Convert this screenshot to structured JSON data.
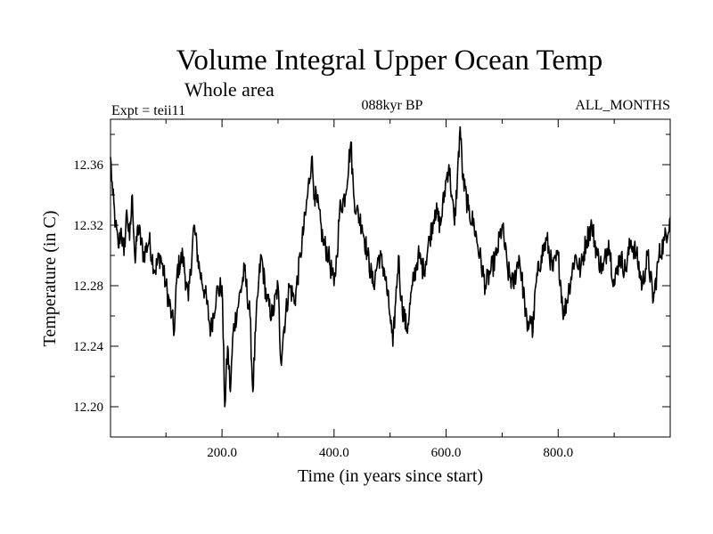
{
  "chart_data": {
    "type": "line",
    "title": "Volume Integral Upper Ocean Temp",
    "subtitle": "Whole area",
    "experiment": "Expt = teii11",
    "period": "088kyr BP",
    "months": "ALL_MONTHS",
    "xlabel": "Time (in years since start)",
    "ylabel": "Temperature (in C)",
    "xlim": [
      1,
      1000
    ],
    "ylim": [
      12.18,
      12.39
    ],
    "x_ticks": [
      200,
      400,
      600,
      800
    ],
    "x_tick_labels": [
      "200.0",
      "400.0",
      "600.0",
      "800.0"
    ],
    "y_ticks": [
      12.2,
      12.24,
      12.28,
      12.32,
      12.36
    ],
    "y_tick_labels": [
      "12.20",
      "12.24",
      "12.28",
      "12.32",
      "12.36"
    ],
    "grid": false,
    "line_color": "#000000",
    "series": [
      {
        "x": [
          1,
          5,
          10,
          15,
          20,
          25,
          30,
          35,
          40,
          45,
          50,
          60,
          70,
          80,
          90,
          100,
          110,
          115,
          120,
          130,
          140,
          150,
          160,
          170,
          180,
          190,
          200,
          205,
          210,
          215,
          220,
          230,
          240,
          250,
          255,
          260,
          265,
          270,
          280,
          290,
          300,
          305,
          310,
          320,
          330,
          340,
          350,
          360,
          365,
          370,
          380,
          390,
          400,
          405,
          410,
          420,
          430,
          435,
          440,
          450,
          460,
          470,
          480,
          490,
          500,
          505,
          510,
          515,
          520,
          530,
          540,
          550,
          560,
          570,
          580,
          590,
          600,
          605,
          610,
          615,
          620,
          625,
          630,
          640,
          650,
          660,
          670,
          680,
          690,
          700,
          710,
          720,
          730,
          740,
          745,
          750,
          755,
          760,
          770,
          780,
          790,
          800,
          810,
          820,
          830,
          840,
          850,
          860,
          870,
          880,
          890,
          900,
          910,
          920,
          930,
          940,
          950,
          960,
          970,
          980,
          990,
          1000
        ],
        "y": [
          12.365,
          12.34,
          12.32,
          12.305,
          12.318,
          12.3,
          12.33,
          12.31,
          12.34,
          12.295,
          12.32,
          12.3,
          12.31,
          12.29,
          12.3,
          12.28,
          12.26,
          12.25,
          12.29,
          12.3,
          12.27,
          12.32,
          12.29,
          12.275,
          12.25,
          12.275,
          12.28,
          12.2,
          12.24,
          12.21,
          12.25,
          12.27,
          12.29,
          12.26,
          12.21,
          12.25,
          12.28,
          12.3,
          12.27,
          12.26,
          12.28,
          12.23,
          12.25,
          12.28,
          12.27,
          12.3,
          12.33,
          12.365,
          12.34,
          12.335,
          12.31,
          12.3,
          12.28,
          12.3,
          12.33,
          12.34,
          12.375,
          12.34,
          12.33,
          12.32,
          12.3,
          12.28,
          12.3,
          12.29,
          12.26,
          12.24,
          12.27,
          12.3,
          12.27,
          12.25,
          12.28,
          12.3,
          12.29,
          12.31,
          12.33,
          12.32,
          12.35,
          12.36,
          12.34,
          12.32,
          12.35,
          12.385,
          12.35,
          12.33,
          12.32,
          12.3,
          12.28,
          12.29,
          12.3,
          12.32,
          12.29,
          12.28,
          12.3,
          12.27,
          12.25,
          12.26,
          12.25,
          12.28,
          12.3,
          12.31,
          12.29,
          12.3,
          12.26,
          12.28,
          12.3,
          12.29,
          12.31,
          12.32,
          12.3,
          12.29,
          12.31,
          12.28,
          12.3,
          12.29,
          12.31,
          12.3,
          12.28,
          12.3,
          12.27,
          12.3,
          12.31,
          12.325
        ]
      }
    ]
  }
}
